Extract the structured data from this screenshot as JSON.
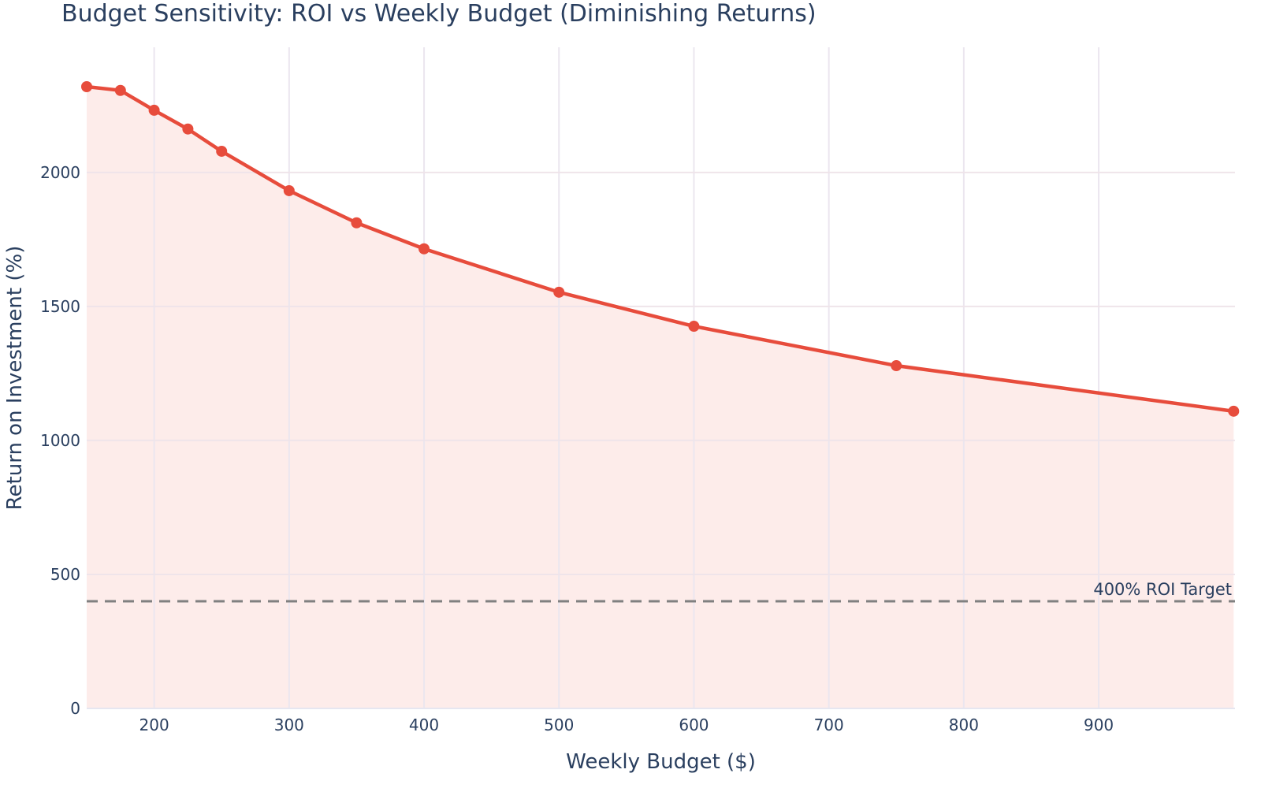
{
  "chart_data": {
    "type": "line",
    "title": "Budget Sensitivity: ROI vs Weekly Budget (Diminishing Returns)",
    "xlabel": "Weekly Budget ($)",
    "ylabel": "Return on Investment (%)",
    "x": [
      150,
      175,
      200,
      225,
      250,
      300,
      350,
      400,
      500,
      600,
      750,
      1000
    ],
    "series": [
      {
        "values": [
          2320,
          2306,
          2232,
          2162,
          2079,
          1932,
          1812,
          1715,
          1553,
          1426,
          1279,
          1109
        ],
        "color": "#e74c3c",
        "fill": "tozeroy",
        "fill_color": "#fdecea",
        "markers": true
      }
    ],
    "xlim": [
      150,
      1001
    ],
    "ylim": [
      0,
      2467
    ],
    "xticks": [
      200,
      300,
      400,
      500,
      600,
      700,
      800,
      900
    ],
    "yticks": [
      0,
      500,
      1000,
      1500,
      2000
    ],
    "grid": true,
    "reference_line": {
      "y": 400,
      "label": "400% ROI Target",
      "color": "#808080",
      "style": "dashed"
    }
  }
}
